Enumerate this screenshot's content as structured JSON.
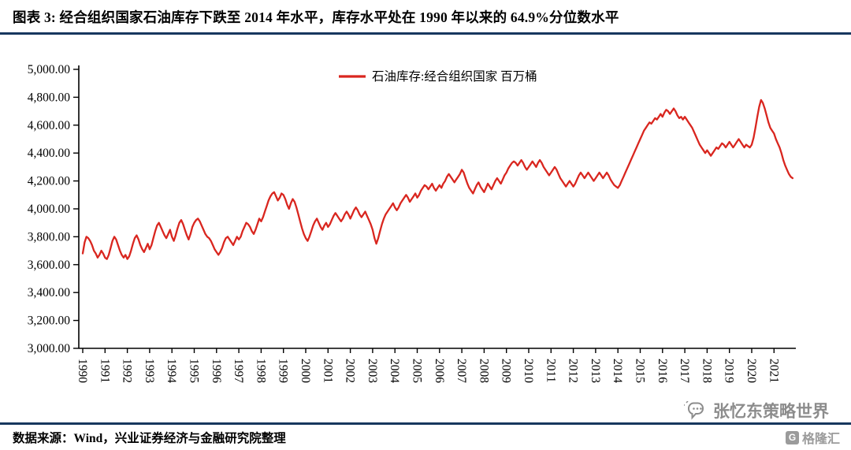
{
  "header": {
    "title": "图表 3:  经合组织国家石油库存下跌至 2014 年水平，库存水平处在 1990 年以来的 64.9%分位数水平"
  },
  "footer": {
    "source": "数据来源：Wind，兴业证券经济与金融研究院整理",
    "watermark": "张忆东策略世界",
    "logo_text": "格隆汇",
    "logo_letter": "G"
  },
  "chart_data": {
    "type": "line",
    "title": "经合组织国家石油库存（百万桶）",
    "legend": "石油库存:经合组织国家 百万桶",
    "legend_position": "top-center",
    "grid": false,
    "xlabel": "",
    "ylabel": "",
    "ylim": [
      3000,
      5000
    ],
    "y_ticks": [
      3000,
      3200,
      3400,
      3600,
      3800,
      4000,
      4200,
      4400,
      4600,
      4800,
      5000
    ],
    "y_tick_labels": [
      "3,000.00",
      "3,200.00",
      "3,400.00",
      "3,600.00",
      "3,800.00",
      "4,000.00",
      "4,200.00",
      "4,400.00",
      "4,600.00",
      "4,800.00",
      "5,000.00"
    ],
    "x_tick_labels": [
      "1990",
      "1991",
      "1992",
      "1993",
      "1994",
      "1995",
      "1996",
      "1997",
      "1998",
      "1999",
      "2000",
      "2001",
      "2002",
      "2003",
      "2004",
      "2005",
      "2006",
      "2007",
      "2008",
      "2009",
      "2010",
      "2011",
      "2012",
      "2013",
      "2014",
      "2015",
      "2016",
      "2017",
      "2018",
      "2019",
      "2020",
      "2021"
    ],
    "series": [
      {
        "name": "石油库存:经合组织国家 百万桶",
        "color": "#d9261f",
        "start_year": 1990,
        "frequency": "monthly",
        "values": [
          3680,
          3760,
          3800,
          3790,
          3770,
          3740,
          3700,
          3680,
          3650,
          3670,
          3700,
          3680,
          3650,
          3640,
          3670,
          3720,
          3770,
          3800,
          3780,
          3740,
          3700,
          3670,
          3650,
          3670,
          3640,
          3660,
          3700,
          3750,
          3790,
          3810,
          3780,
          3740,
          3710,
          3690,
          3720,
          3750,
          3710,
          3740,
          3790,
          3840,
          3880,
          3900,
          3870,
          3840,
          3810,
          3790,
          3820,
          3850,
          3800,
          3770,
          3810,
          3860,
          3900,
          3920,
          3890,
          3850,
          3810,
          3780,
          3820,
          3870,
          3900,
          3920,
          3930,
          3910,
          3880,
          3850,
          3820,
          3800,
          3790,
          3770,
          3740,
          3710,
          3690,
          3670,
          3690,
          3720,
          3760,
          3790,
          3800,
          3780,
          3760,
          3740,
          3770,
          3800,
          3780,
          3800,
          3840,
          3870,
          3900,
          3890,
          3870,
          3840,
          3820,
          3850,
          3890,
          3930,
          3910,
          3940,
          3980,
          4020,
          4060,
          4090,
          4110,
          4120,
          4090,
          4060,
          4080,
          4110,
          4100,
          4070,
          4030,
          4000,
          4040,
          4070,
          4050,
          4010,
          3960,
          3910,
          3860,
          3820,
          3790,
          3770,
          3800,
          3840,
          3880,
          3910,
          3930,
          3900,
          3870,
          3850,
          3880,
          3900,
          3870,
          3890,
          3920,
          3950,
          3970,
          3950,
          3930,
          3910,
          3930,
          3960,
          3980,
          3960,
          3930,
          3960,
          3990,
          4010,
          3990,
          3960,
          3940,
          3960,
          3980,
          3950,
          3920,
          3890,
          3850,
          3790,
          3750,
          3790,
          3840,
          3890,
          3930,
          3960,
          3980,
          4000,
          4020,
          4040,
          4010,
          3990,
          4010,
          4040,
          4060,
          4080,
          4100,
          4080,
          4050,
          4070,
          4090,
          4110,
          4080,
          4100,
          4130,
          4150,
          4170,
          4160,
          4140,
          4160,
          4180,
          4150,
          4130,
          4150,
          4170,
          4150,
          4180,
          4200,
          4230,
          4250,
          4230,
          4210,
          4190,
          4210,
          4230,
          4250,
          4280,
          4260,
          4220,
          4180,
          4150,
          4130,
          4110,
          4140,
          4170,
          4190,
          4160,
          4140,
          4120,
          4150,
          4180,
          4160,
          4140,
          4170,
          4200,
          4220,
          4200,
          4180,
          4210,
          4240,
          4260,
          4290,
          4310,
          4330,
          4340,
          4330,
          4310,
          4330,
          4350,
          4330,
          4300,
          4280,
          4300,
          4320,
          4340,
          4320,
          4300,
          4330,
          4350,
          4330,
          4300,
          4280,
          4260,
          4240,
          4260,
          4280,
          4300,
          4280,
          4250,
          4220,
          4200,
          4180,
          4160,
          4180,
          4200,
          4180,
          4160,
          4180,
          4210,
          4240,
          4260,
          4240,
          4220,
          4240,
          4260,
          4240,
          4220,
          4200,
          4220,
          4240,
          4260,
          4240,
          4220,
          4240,
          4260,
          4240,
          4210,
          4190,
          4170,
          4160,
          4150,
          4170,
          4200,
          4230,
          4260,
          4290,
          4320,
          4350,
          4380,
          4410,
          4440,
          4470,
          4500,
          4530,
          4560,
          4580,
          4600,
          4620,
          4610,
          4630,
          4650,
          4640,
          4660,
          4680,
          4660,
          4690,
          4710,
          4700,
          4680,
          4700,
          4720,
          4700,
          4670,
          4650,
          4660,
          4640,
          4660,
          4640,
          4620,
          4600,
          4580,
          4550,
          4520,
          4490,
          4460,
          4440,
          4420,
          4400,
          4420,
          4400,
          4380,
          4400,
          4420,
          4440,
          4430,
          4450,
          4470,
          4460,
          4440,
          4460,
          4480,
          4460,
          4440,
          4460,
          4480,
          4500,
          4480,
          4460,
          4440,
          4460,
          4450,
          4440,
          4460,
          4510,
          4580,
          4660,
          4730,
          4780,
          4760,
          4720,
          4670,
          4620,
          4580,
          4560,
          4540,
          4500,
          4470,
          4440,
          4400,
          4350,
          4310,
          4280,
          4250,
          4230,
          4220
        ]
      }
    ]
  }
}
